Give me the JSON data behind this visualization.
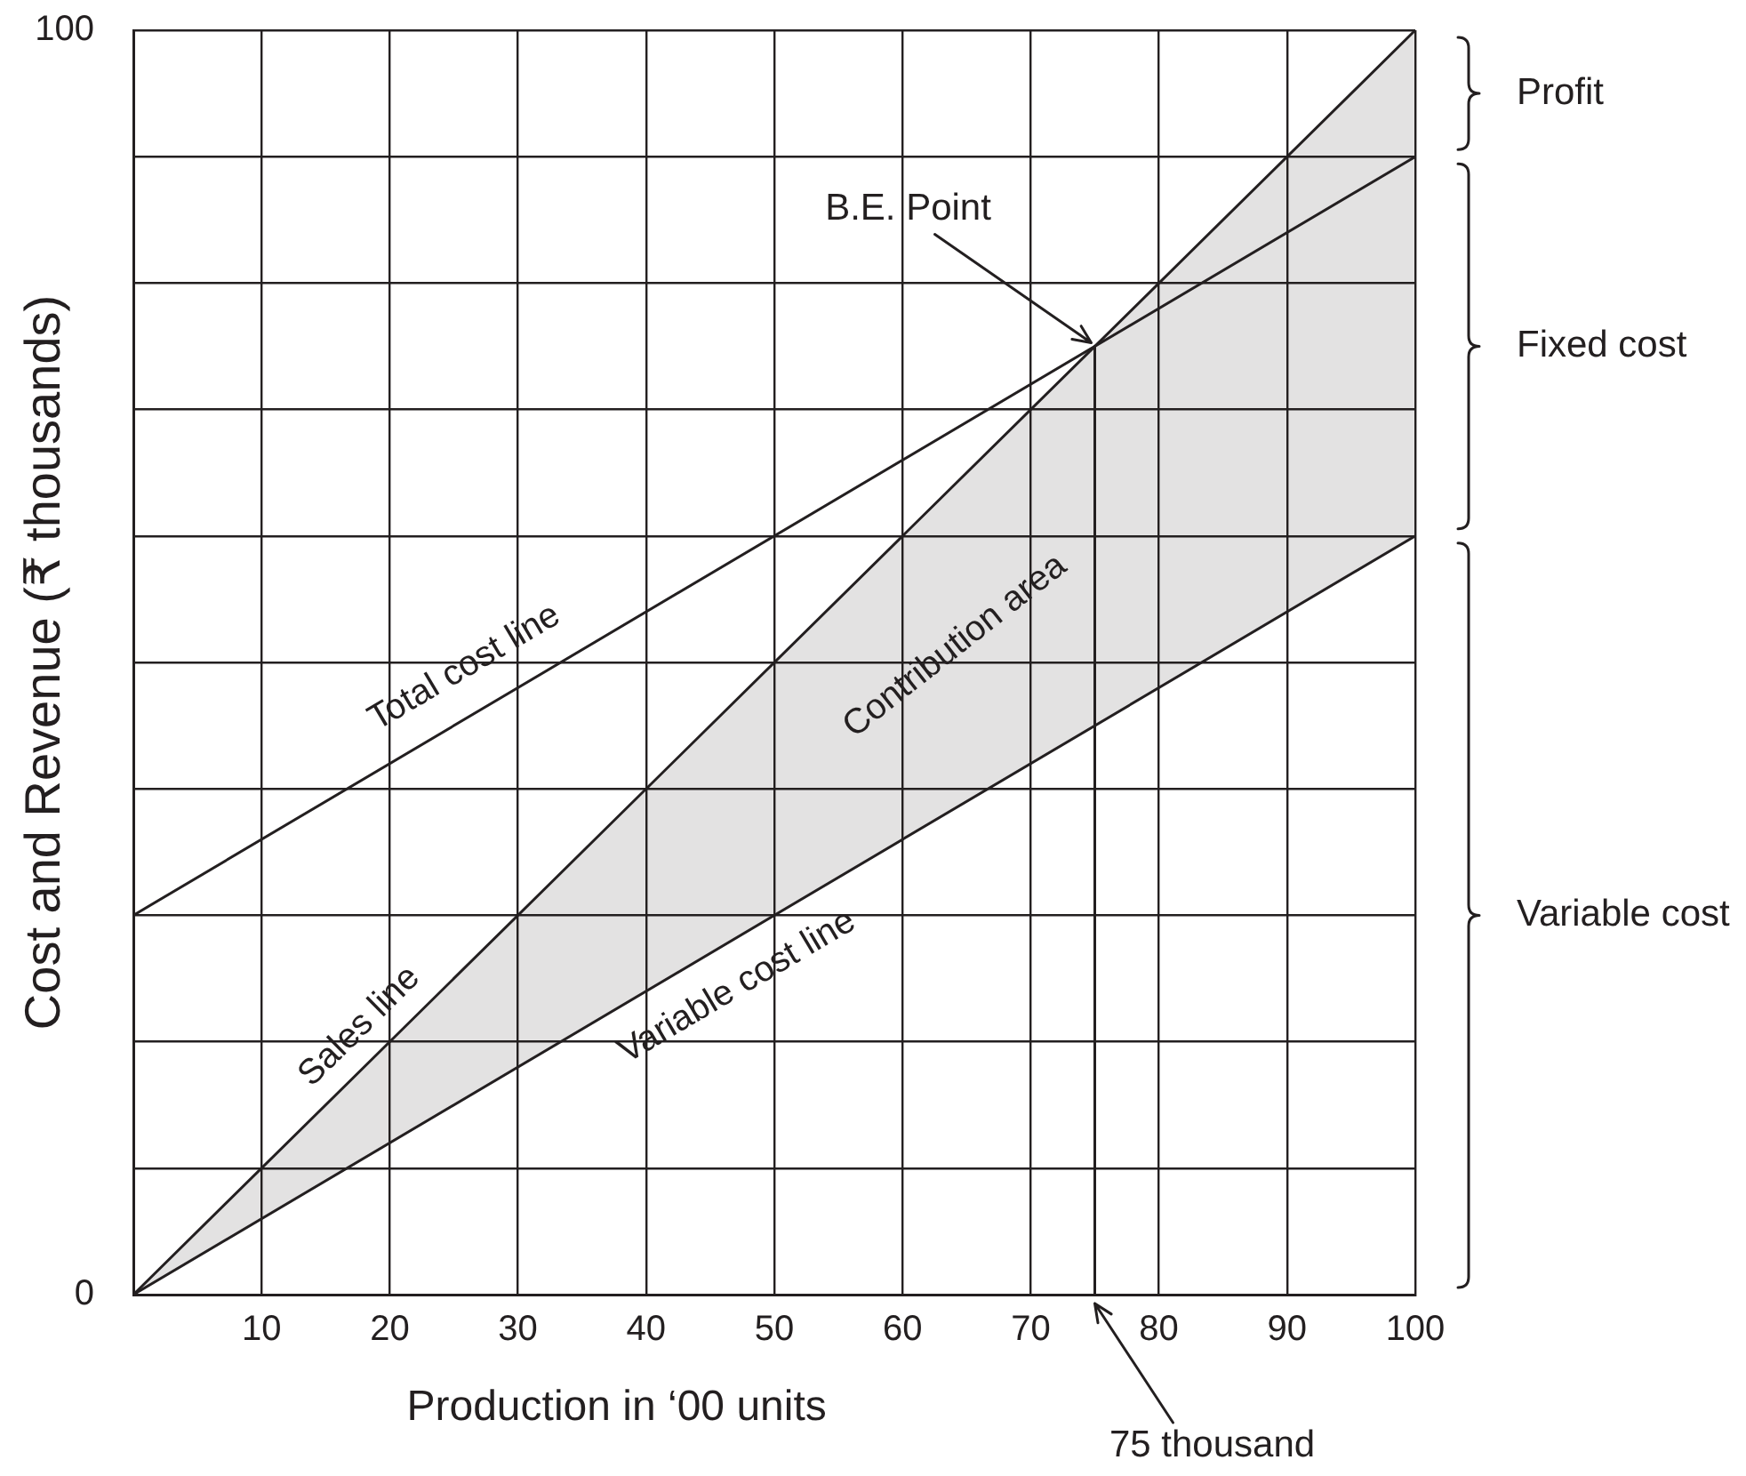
{
  "chart_data": {
    "type": "line",
    "xlabel": "Production in ‘00 units",
    "ylabel": "Cost and Revenue (₹ thousands)",
    "xlim": [
      0,
      100
    ],
    "ylim": [
      0,
      100
    ],
    "xticks": [
      {
        "value": 0,
        "label": null
      },
      10,
      20,
      30,
      40,
      50,
      60,
      70,
      80,
      90,
      100
    ],
    "yticks": [
      0,
      {
        "value": 10,
        "label": null
      },
      {
        "value": 20,
        "label": null
      },
      {
        "value": 30,
        "label": null
      },
      {
        "value": 40,
        "label": null
      },
      {
        "value": 50,
        "label": null
      },
      {
        "value": 60,
        "label": null
      },
      {
        "value": 70,
        "label": null
      },
      {
        "value": 80,
        "label": null
      },
      {
        "value": 90,
        "label": null
      },
      100
    ],
    "grid": true,
    "series": [
      {
        "name": "Total cost line",
        "color": "#231f20",
        "x": [
          0,
          100
        ],
        "values": [
          30,
          90
        ]
      },
      {
        "name": "Sales line",
        "color": "#231f20",
        "x": [
          0,
          100
        ],
        "values": [
          0,
          100
        ],
        "lower": [
          0,
          60
        ],
        "upper": [
          0,
          100
        ]
      },
      {
        "name": "Variable cost line",
        "color": "#231f20",
        "x": [
          0,
          100
        ],
        "values": [
          0,
          60
        ]
      },
      {
        "color": "#231f20",
        "x": [
          75,
          75
        ],
        "values": [
          0,
          75
        ]
      }
    ],
    "annotations": [
      {
        "text": "B.E. Point",
        "x": 75,
        "y": 75
      },
      {
        "text": "75 thousand",
        "x": 75,
        "y": 0
      },
      "Contribution area",
      "Profit",
      "Fixed cost",
      "Variable cost"
    ]
  }
}
